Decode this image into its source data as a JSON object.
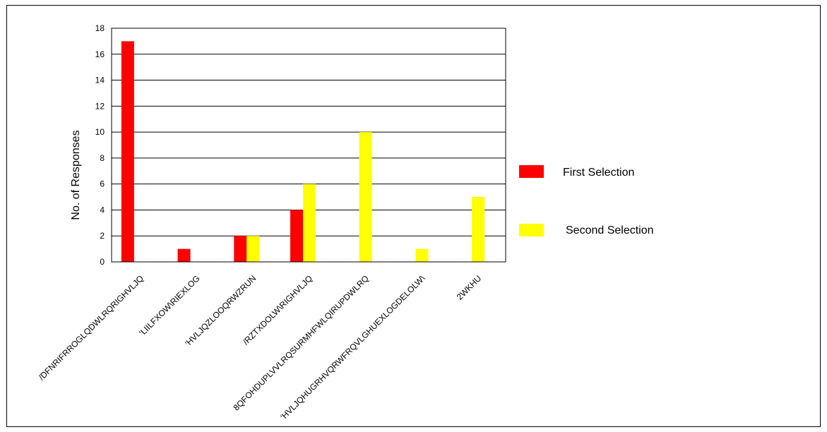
{
  "chart_data": {
    "type": "bar",
    "title": "",
    "xlabel": "",
    "ylabel": "No. of Responses",
    "ylim": [
      0,
      18
    ],
    "yticks": [
      0,
      2,
      4,
      6,
      8,
      10,
      12,
      14,
      16,
      18
    ],
    "grid": true,
    "legend_position": "right",
    "categories": [
      "/DFNRIFRROGLQDWLRQRI\u0003GHVLJQ",
      "'LIILFXOW\\\u0003RI\u0003EXLOG",
      "'HVLJQ\u0003ZLOO\u0003QRW\u0003ZRUN",
      "/RZ\u0003TXDOLW\\\u0003RI\u0003GHVLJQ",
      "8QFOHDU\u0003PLVVLRQ\u0003SURMHFW\u0003LQIRUPDWLRQ",
      "'HVLJQHU\u0003GRHV\u0003QRW\u0003FRQVLGHU\u0003EXLOGDELOLW\\",
      "2WKHU"
    ],
    "series": [
      {
        "name": "First Selection",
        "color": "#ff0000",
        "values": [
          17,
          1,
          2,
          4,
          0,
          0,
          0
        ]
      },
      {
        "name": "Second Selection",
        "color": "#ffff00",
        "values": [
          0,
          0,
          2,
          6,
          10,
          1,
          5
        ]
      }
    ]
  }
}
